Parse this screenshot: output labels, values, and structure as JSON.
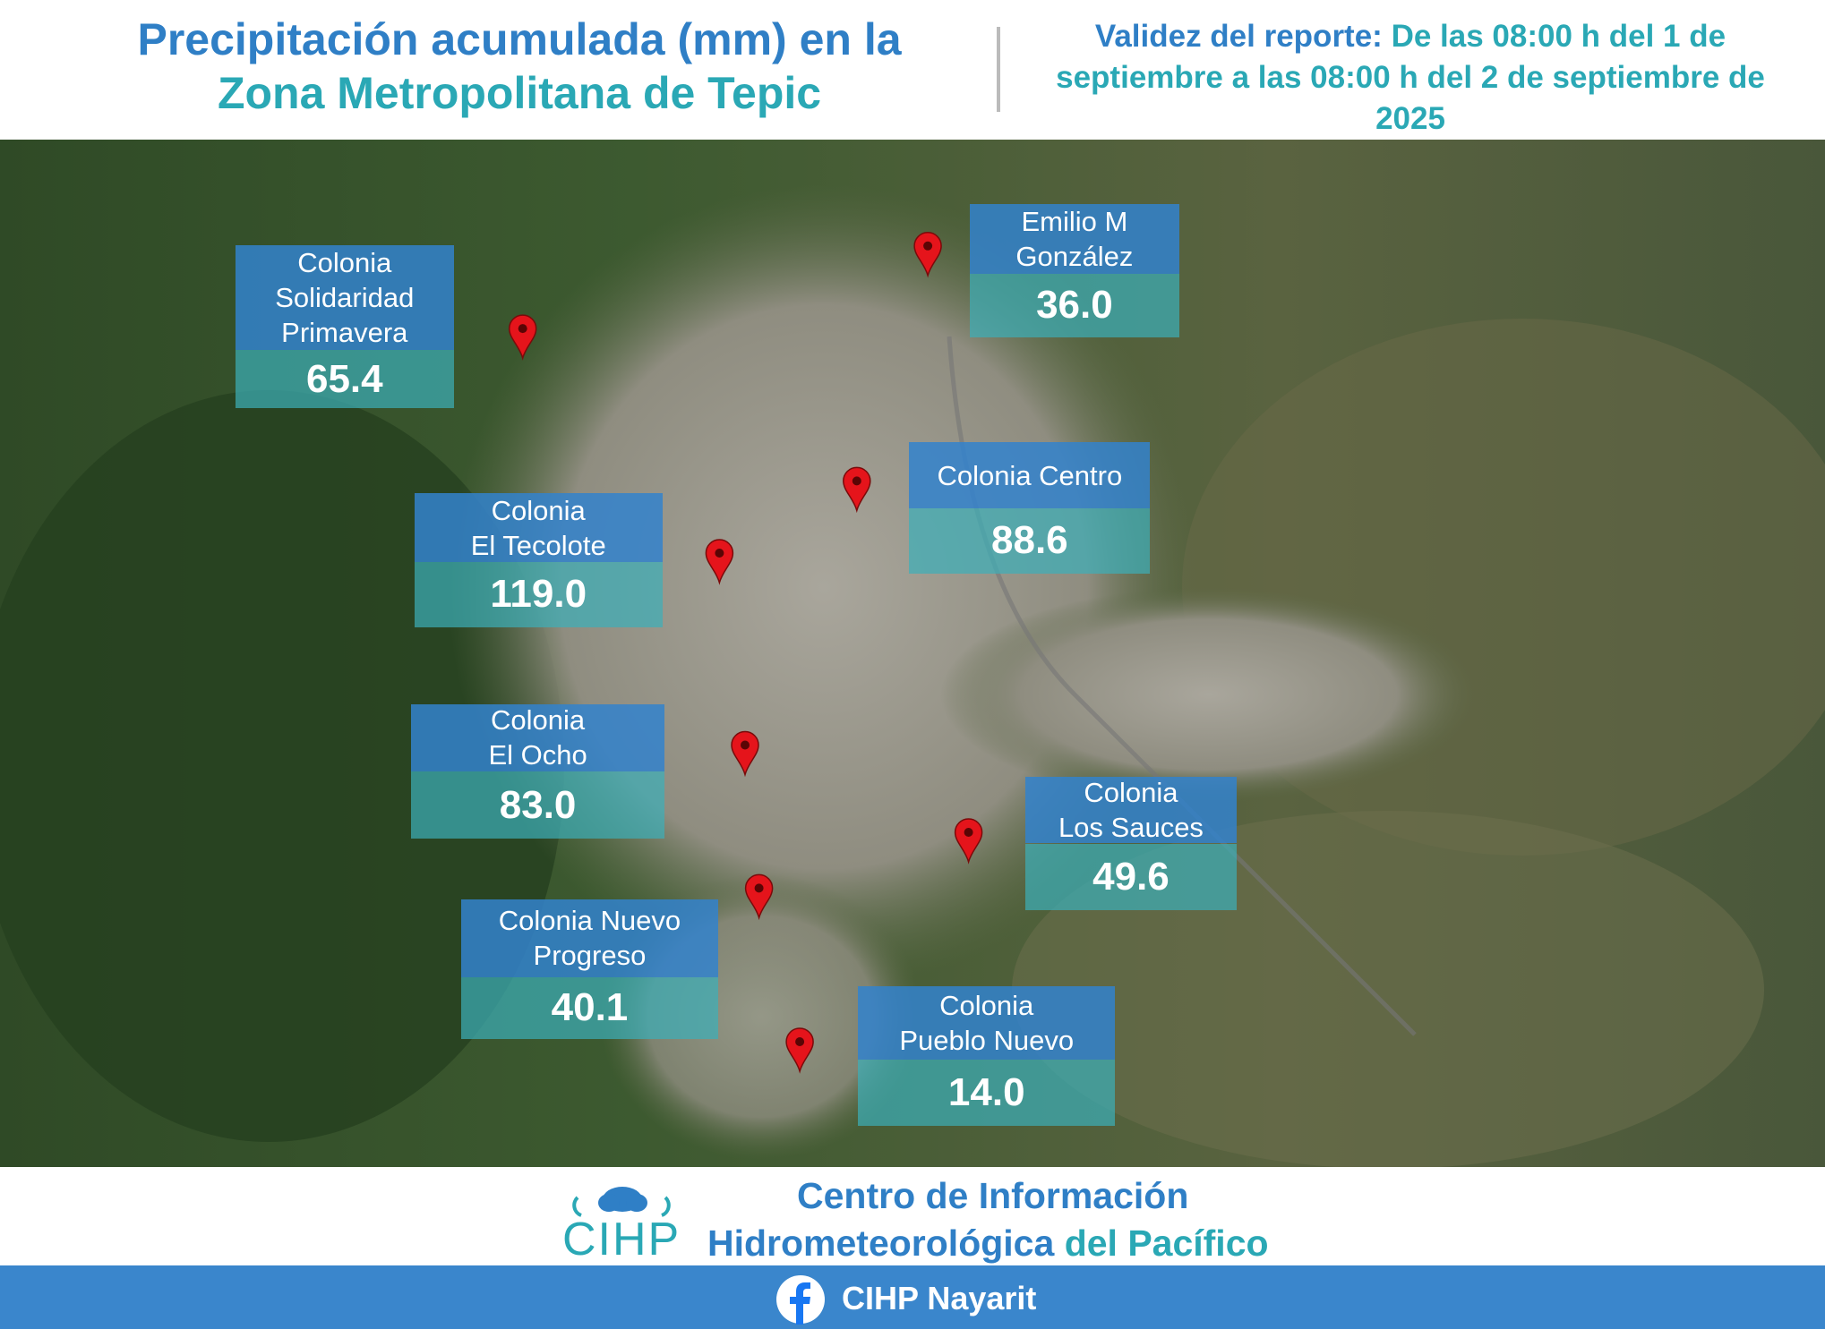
{
  "header": {
    "title_lines": [
      "Precipitación acumulada (mm) en la",
      "Zona Metropolitana de Tepic"
    ],
    "validity": {
      "label": "Validez del reporte:",
      "lines": [
        "De las 08:00 h del 1 de",
        "septiembre a las 08:00 h del 2 de septiembre de",
        "2025"
      ]
    }
  },
  "stations": [
    {
      "name_lines": [
        "Colonia",
        "Solidaridad",
        "Primavera"
      ],
      "value": "65.4"
    },
    {
      "name_lines": [
        "Emilio M",
        "González"
      ],
      "value": "36.0"
    },
    {
      "name_lines": [
        "Colonia Centro"
      ],
      "value": "88.6"
    },
    {
      "name_lines": [
        "Colonia",
        "El Tecolote"
      ],
      "value": "119.0"
    },
    {
      "name_lines": [
        "Colonia",
        "El Ocho"
      ],
      "value": "83.0"
    },
    {
      "name_lines": [
        "Colonia",
        "Los Sauces"
      ],
      "value": "49.6"
    },
    {
      "name_lines": [
        "Colonia Nuevo",
        "Progreso"
      ],
      "value": "40.1"
    },
    {
      "name_lines": [
        "Colonia",
        "Pueblo Nuevo"
      ],
      "value": "14.0"
    }
  ],
  "footer": {
    "logo": "CIHP",
    "org_lines": [
      "Centro de Información",
      "Hidrometeorológica"
    ],
    "org_suffix": "del Pacífico",
    "social": "CIHP Nayarit"
  }
}
